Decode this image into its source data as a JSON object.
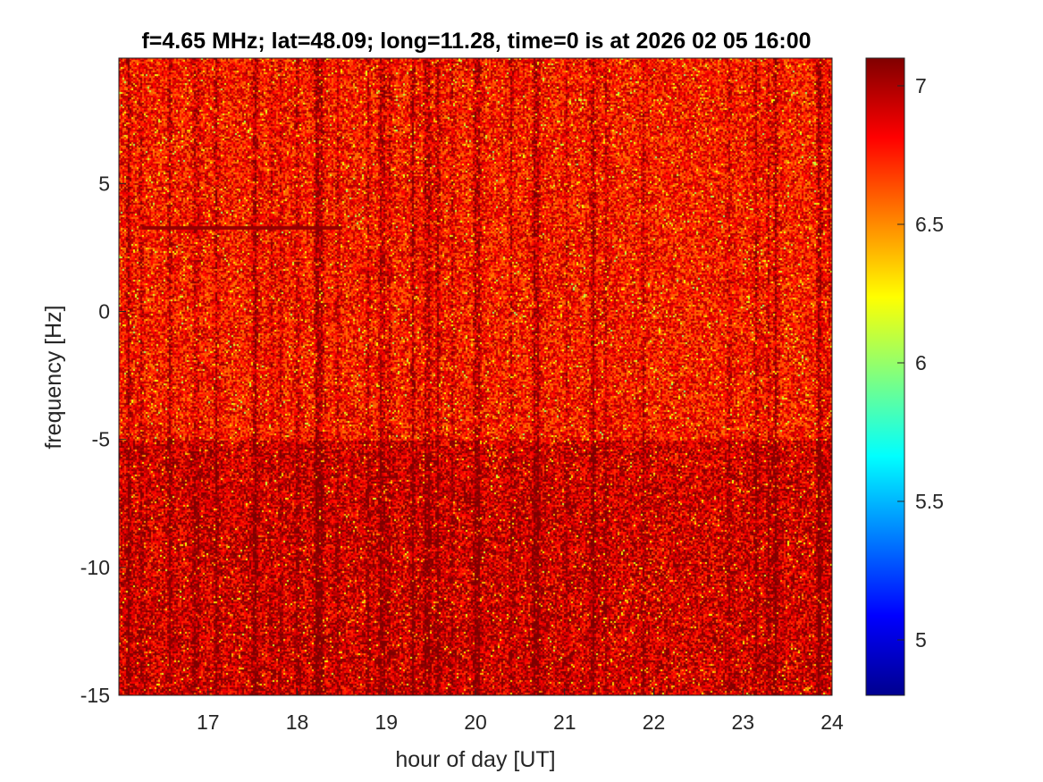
{
  "chart_data": {
    "type": "heatmap",
    "title": "f=4.65 MHz;  lat=48.09; long=11.28, time=0 is at 2026 02 05 16:00",
    "xlabel": "hour of day [UT]",
    "ylabel": "frequency [Hz]",
    "xlim": [
      16,
      24
    ],
    "ylim": [
      -15,
      9.9
    ],
    "x_ticks": [
      17,
      18,
      19,
      20,
      21,
      22,
      23,
      24
    ],
    "y_ticks": [
      -15,
      -10,
      -5,
      0,
      5
    ],
    "colorbar": {
      "colormap": "jet",
      "clim": [
        4.8,
        7.1
      ],
      "ticks": [
        5,
        5.5,
        6,
        6.5,
        7
      ]
    },
    "notes": "Spectrogram dominated by values 6.7-7.1 (orange/red), denser dark red below -5 Hz and in vertical streaks; faint horizontal trace near +3.3 Hz between 16.3 and 18.5 UT."
  }
}
